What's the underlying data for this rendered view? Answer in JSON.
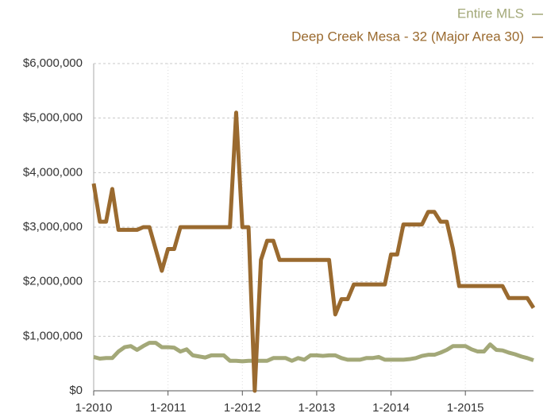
{
  "chart_data": {
    "type": "line",
    "categories": [
      "1-2010",
      null,
      null,
      null,
      null,
      null,
      null,
      null,
      null,
      null,
      null,
      null,
      "1-2011",
      null,
      null,
      null,
      null,
      null,
      null,
      null,
      null,
      null,
      null,
      null,
      "1-2012",
      null,
      null,
      null,
      null,
      null,
      null,
      null,
      null,
      null,
      null,
      null,
      "1-2013",
      null,
      null,
      null,
      null,
      null,
      null,
      null,
      null,
      null,
      null,
      null,
      "1-2014",
      null,
      null,
      null,
      null,
      null,
      null,
      null,
      null,
      null,
      null,
      null,
      "1-2015",
      null,
      null,
      null,
      null,
      null,
      null,
      null,
      null,
      null,
      null,
      null
    ],
    "series": [
      {
        "name": "Entire MLS",
        "color": "#a3a878",
        "values": [
          620000,
          590000,
          600000,
          600000,
          720000,
          800000,
          820000,
          750000,
          820000,
          880000,
          880000,
          800000,
          800000,
          790000,
          720000,
          760000,
          650000,
          630000,
          610000,
          650000,
          650000,
          650000,
          550000,
          550000,
          540000,
          550000,
          550000,
          550000,
          550000,
          600000,
          600000,
          600000,
          550000,
          600000,
          570000,
          650000,
          650000,
          640000,
          650000,
          650000,
          600000,
          570000,
          570000,
          570000,
          600000,
          600000,
          620000,
          570000,
          570000,
          570000,
          570000,
          580000,
          600000,
          640000,
          660000,
          660000,
          700000,
          750000,
          820000,
          820000,
          820000,
          760000,
          720000,
          720000,
          850000,
          750000,
          740000,
          700000,
          670000,
          630000,
          600000,
          560000
        ]
      },
      {
        "name": "Deep Creek Mesa - 32 (Major Area 30)",
        "color": "#9a6a2f",
        "values": [
          3800000,
          3100000,
          3100000,
          3700000,
          2950000,
          2950000,
          2950000,
          2950000,
          3000000,
          3000000,
          2600000,
          2200000,
          2600000,
          2600000,
          3000000,
          3000000,
          3000000,
          3000000,
          3000000,
          3000000,
          3000000,
          3000000,
          3000000,
          5100000,
          3000000,
          3000000,
          0,
          2400000,
          2750000,
          2750000,
          2400000,
          2400000,
          2400000,
          2400000,
          2400000,
          2400000,
          2400000,
          2400000,
          2400000,
          1400000,
          1680000,
          1680000,
          1950000,
          1950000,
          1950000,
          1950000,
          1950000,
          1950000,
          2500000,
          2500000,
          3050000,
          3050000,
          3050000,
          3050000,
          3280000,
          3280000,
          3100000,
          3100000,
          2600000,
          1920000,
          1920000,
          1920000,
          1920000,
          1920000,
          1920000,
          1920000,
          1920000,
          1700000,
          1700000,
          1700000,
          1700000,
          1520000
        ]
      }
    ],
    "ylim": [
      0,
      6000000
    ],
    "yticks": [
      {
        "value": 0,
        "label": "$0"
      },
      {
        "value": 1000000,
        "label": "$1,000,000"
      },
      {
        "value": 2000000,
        "label": "$2,000,000"
      },
      {
        "value": 3000000,
        "label": "$3,000,000"
      },
      {
        "value": 4000000,
        "label": "$4,000,000"
      },
      {
        "value": 5000000,
        "label": "$5,000,000"
      },
      {
        "value": 6000000,
        "label": "$6,000,000"
      }
    ],
    "grid": true,
    "legend": "top-right"
  }
}
